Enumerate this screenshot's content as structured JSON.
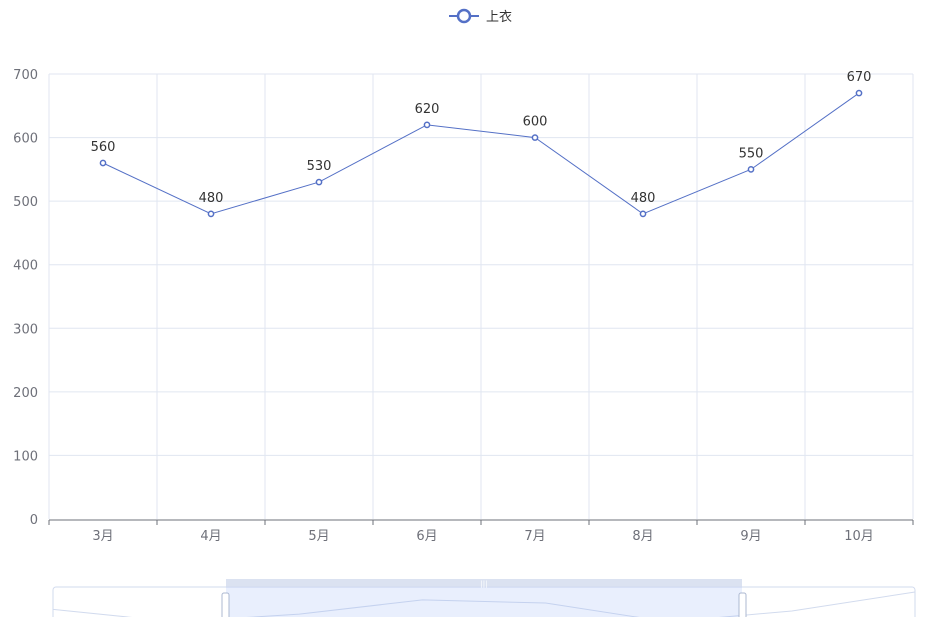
{
  "chart_data": {
    "type": "line",
    "categories": [
      "3月",
      "4月",
      "5月",
      "6月",
      "7月",
      "8月",
      "9月",
      "10月"
    ],
    "series": [
      {
        "name": "上衣",
        "values": [
          560,
          480,
          530,
          620,
          600,
          480,
          550,
          670
        ]
      }
    ],
    "yticks": [
      "0",
      "100",
      "200",
      "300",
      "400",
      "500",
      "600",
      "700"
    ],
    "ylim": [
      0,
      700
    ],
    "grid": true,
    "legend": "top-center",
    "show_data_labels": true,
    "data_zoom_slider": true,
    "colors": {
      "series": "#5470c6",
      "grid": "#e0e6f1",
      "axis": "#6e7079"
    }
  }
}
